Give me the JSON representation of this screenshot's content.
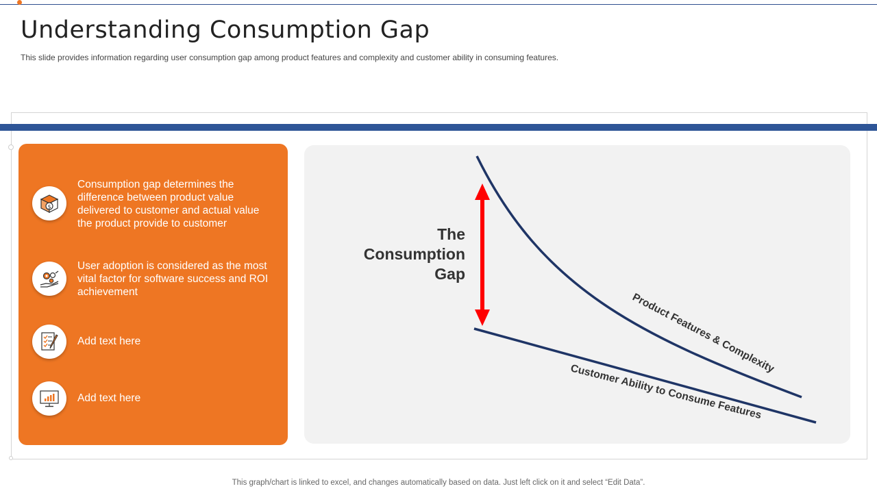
{
  "slide": {
    "title": "Understanding Consumption Gap",
    "subtitle": "This slide provides information regarding user consumption gap among product features and complexity and customer ability in consuming features."
  },
  "left_panel": {
    "items": [
      {
        "icon": "money-box-icon",
        "text": "Consumption gap determines the difference between product value delivered to customer and actual value the product provide to customer"
      },
      {
        "icon": "hand-gears-icon",
        "text": "User adoption is considered as the most vital factor for software success and ROI achievement"
      },
      {
        "icon": "checklist-pen-icon",
        "text": "Add text here"
      },
      {
        "icon": "monitor-chart-icon",
        "text": "Add text here"
      }
    ]
  },
  "diagram": {
    "gap_label": "The\nConsumption\nGap",
    "curve_upper_label": "Product Features & Complexity",
    "curve_lower_label": "Customer Ability  to Consume Features"
  },
  "footer": {
    "note": "This graph/chart is linked to excel, and changes automatically based on data. Just left click on it and select “Edit Data”."
  },
  "colors": {
    "accent": "#ee7623",
    "band": "#2e5597",
    "curve": "#1f3566",
    "arrow": "#ff0000",
    "panel_bg": "#f2f2f2"
  }
}
